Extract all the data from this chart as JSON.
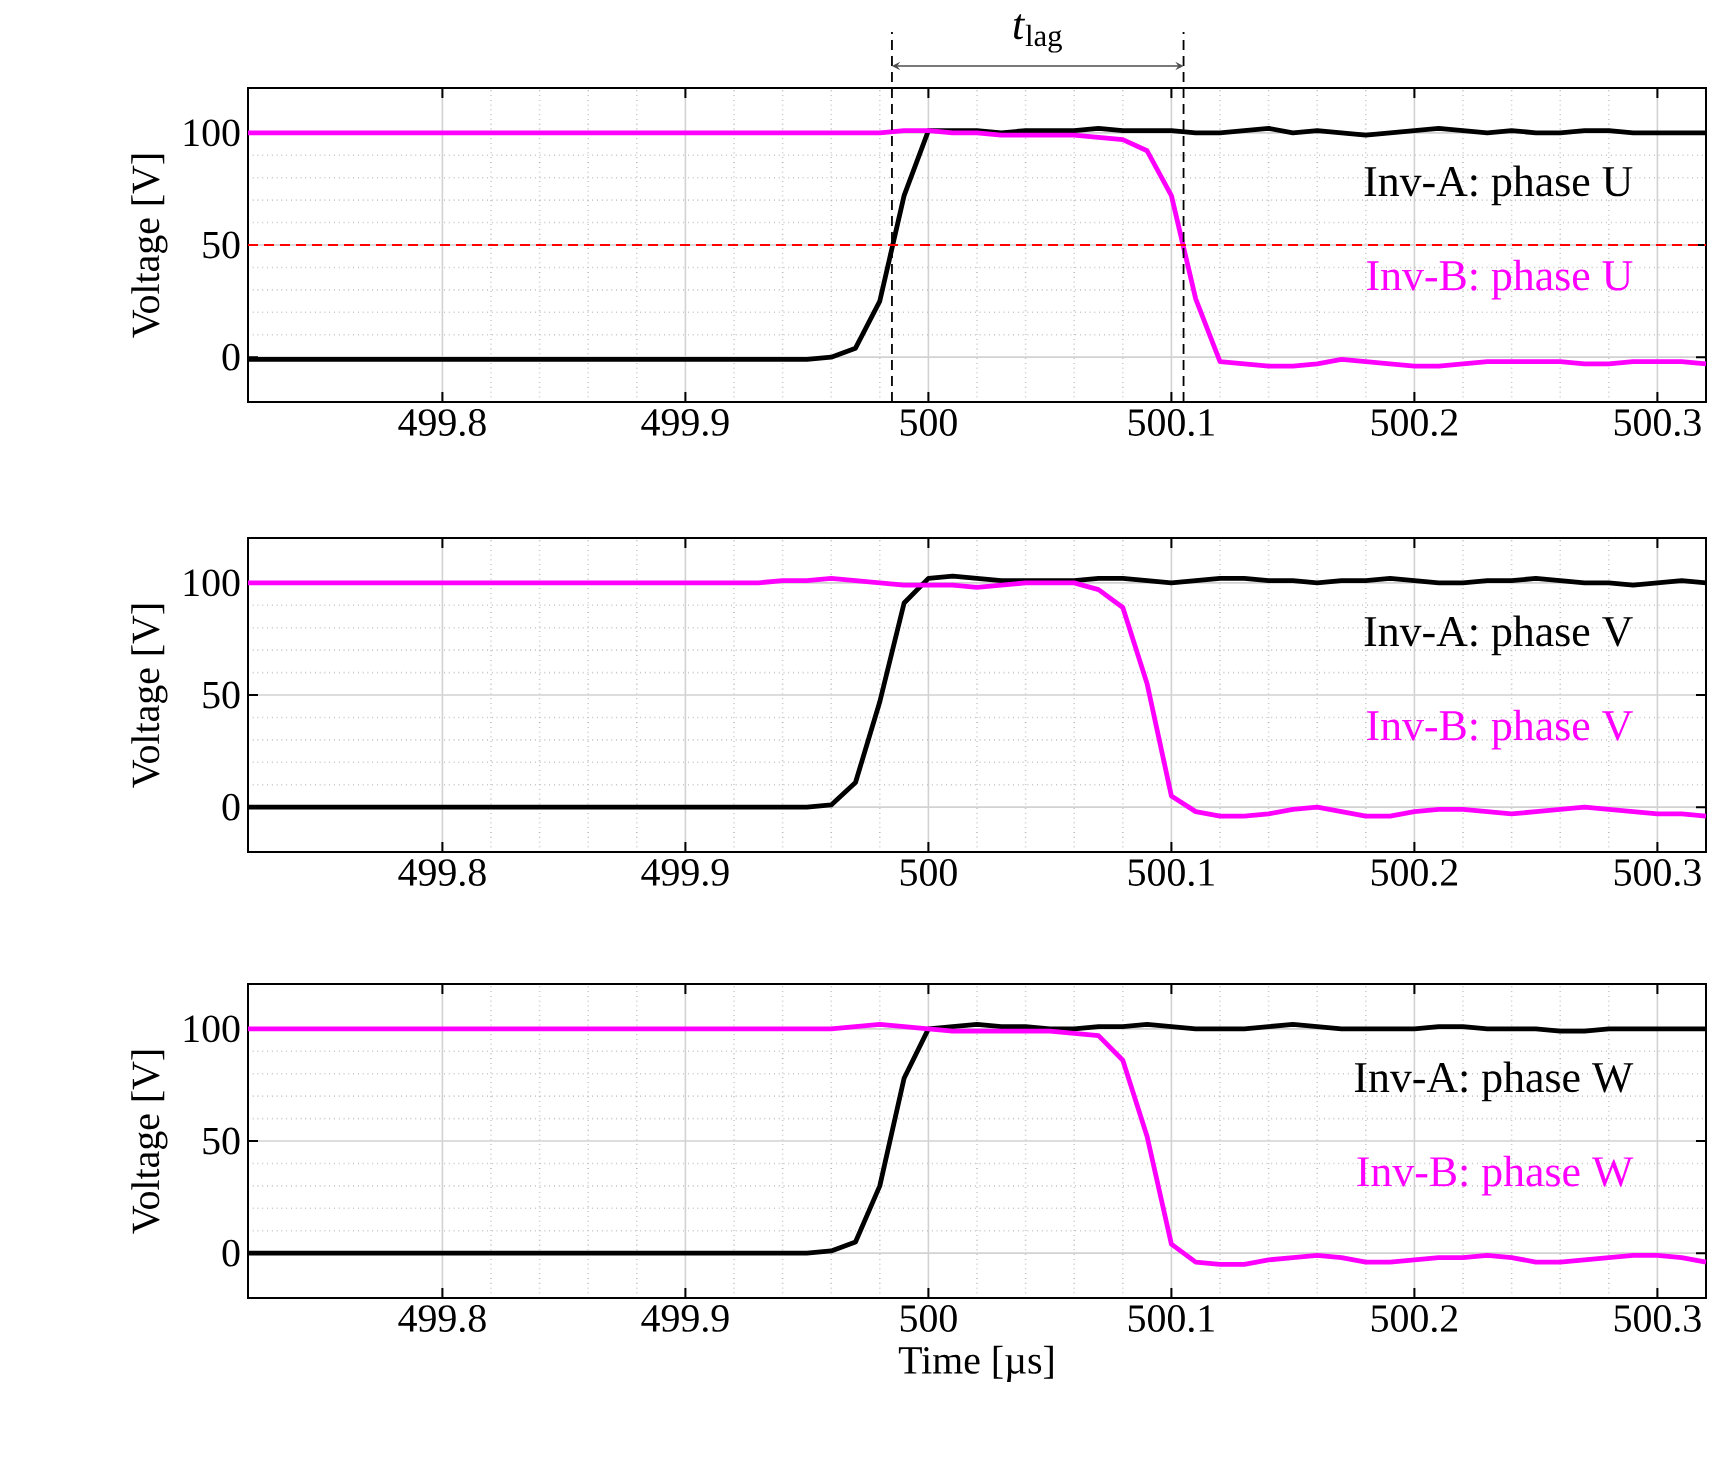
{
  "chart_data": [
    {
      "type": "line",
      "ylabel": "Voltage [V]",
      "x": [
        499.72,
        499.73,
        499.74,
        499.75,
        499.76,
        499.77,
        499.78,
        499.79,
        499.8,
        499.81,
        499.82,
        499.83,
        499.84,
        499.85,
        499.86,
        499.87,
        499.88,
        499.89,
        499.9,
        499.91,
        499.92,
        499.93,
        499.94,
        499.95,
        499.96,
        499.97,
        499.98,
        499.99,
        500.0,
        500.01,
        500.02,
        500.03,
        500.04,
        500.05,
        500.06,
        500.07,
        500.08,
        500.09,
        500.1,
        500.11,
        500.12,
        500.13,
        500.14,
        500.15,
        500.16,
        500.17,
        500.18,
        500.19,
        500.2,
        500.21,
        500.22,
        500.23,
        500.24,
        500.25,
        500.26,
        500.27,
        500.28,
        500.29,
        500.3,
        500.31,
        500.32
      ],
      "series": [
        {
          "name": "Inv-A: phase U",
          "color": "#000000",
          "values": [
            -1,
            -1,
            -1,
            -1,
            -1,
            -1,
            -1,
            -1,
            -1,
            -1,
            -1,
            -1,
            -1,
            -1,
            -1,
            -1,
            -1,
            -1,
            -1,
            -1,
            -1,
            -1,
            -1,
            -1,
            0,
            4,
            25,
            72,
            101,
            101,
            101,
            100,
            101,
            101,
            101,
            102,
            101,
            101,
            101,
            100,
            100,
            101,
            102,
            100,
            101,
            100,
            99,
            100,
            101,
            102,
            101,
            100,
            101,
            100,
            100,
            101,
            101,
            100,
            100,
            100,
            100
          ]
        },
        {
          "name": "Inv-B: phase U",
          "color": "#ff00ff",
          "values": [
            100,
            100,
            100,
            100,
            100,
            100,
            100,
            100,
            100,
            100,
            100,
            100,
            100,
            100,
            100,
            100,
            100,
            100,
            100,
            100,
            100,
            100,
            100,
            100,
            100,
            100,
            100,
            101,
            101,
            100,
            100,
            99,
            99,
            99,
            99,
            98,
            97,
            92,
            72,
            26,
            -2,
            -3,
            -4,
            -4,
            -3,
            -1,
            -2,
            -3,
            -4,
            -4,
            -3,
            -2,
            -2,
            -2,
            -2,
            -3,
            -3,
            -2,
            -2,
            -2,
            -3
          ]
        }
      ],
      "xlim": [
        499.72,
        500.32
      ],
      "ylim": [
        -20,
        120
      ],
      "xticks": [
        499.8,
        499.9,
        500,
        500.1,
        500.2,
        500.3
      ],
      "yticks": [
        0,
        50,
        100
      ],
      "grid": true,
      "line_style": "solid",
      "marker": "none",
      "ref_lines": [
        {
          "axis": "y",
          "value": 50,
          "color": "#ff0000",
          "line_style": "dashed"
        },
        {
          "axis": "x",
          "value": 499.985,
          "color": "#000000",
          "line_style": "dashed"
        },
        {
          "axis": "x",
          "value": 500.105,
          "color": "#000000",
          "line_style": "dashed"
        }
      ],
      "annotations": [
        "*t*$_{lag}$"
      ]
    },
    {
      "type": "line",
      "ylabel": "Voltage [V]",
      "x": [
        499.72,
        499.73,
        499.74,
        499.75,
        499.76,
        499.77,
        499.78,
        499.79,
        499.8,
        499.81,
        499.82,
        499.83,
        499.84,
        499.85,
        499.86,
        499.87,
        499.88,
        499.89,
        499.9,
        499.91,
        499.92,
        499.93,
        499.94,
        499.95,
        499.96,
        499.97,
        499.98,
        499.99,
        500.0,
        500.01,
        500.02,
        500.03,
        500.04,
        500.05,
        500.06,
        500.07,
        500.08,
        500.09,
        500.1,
        500.11,
        500.12,
        500.13,
        500.14,
        500.15,
        500.16,
        500.17,
        500.18,
        500.19,
        500.2,
        500.21,
        500.22,
        500.23,
        500.24,
        500.25,
        500.26,
        500.27,
        500.28,
        500.29,
        500.3,
        500.31,
        500.32
      ],
      "series": [
        {
          "name": "Inv-A: phase V",
          "color": "#000000",
          "values": [
            0,
            0,
            0,
            0,
            0,
            0,
            0,
            0,
            0,
            0,
            0,
            0,
            0,
            0,
            0,
            0,
            0,
            0,
            0,
            0,
            0,
            0,
            0,
            0,
            1,
            11,
            47,
            91,
            102,
            103,
            102,
            101,
            101,
            101,
            101,
            102,
            102,
            101,
            100,
            101,
            102,
            102,
            101,
            101,
            100,
            101,
            101,
            102,
            101,
            100,
            100,
            101,
            101,
            102,
            101,
            100,
            100,
            99,
            100,
            101,
            100
          ]
        },
        {
          "name": "Inv-B: phase V",
          "color": "#ff00ff",
          "values": [
            100,
            100,
            100,
            100,
            100,
            100,
            100,
            100,
            100,
            100,
            100,
            100,
            100,
            100,
            100,
            100,
            100,
            100,
            100,
            100,
            100,
            100,
            101,
            101,
            102,
            101,
            100,
            99,
            99,
            99,
            98,
            99,
            100,
            100,
            100,
            97,
            89,
            55,
            5,
            -2,
            -4,
            -4,
            -3,
            -1,
            0,
            -2,
            -4,
            -4,
            -2,
            -1,
            -1,
            -2,
            -3,
            -2,
            -1,
            0,
            -1,
            -2,
            -3,
            -3,
            -4
          ]
        }
      ],
      "xlim": [
        499.72,
        500.32
      ],
      "ylim": [
        -20,
        120
      ],
      "xticks": [
        499.8,
        499.9,
        500,
        500.1,
        500.2,
        500.3
      ],
      "yticks": [
        0,
        50,
        100
      ],
      "grid": true,
      "line_style": "solid",
      "marker": "none"
    },
    {
      "type": "line",
      "ylabel": "Voltage [V]",
      "xlabel": "Time [µs]",
      "x": [
        499.72,
        499.73,
        499.74,
        499.75,
        499.76,
        499.77,
        499.78,
        499.79,
        499.8,
        499.81,
        499.82,
        499.83,
        499.84,
        499.85,
        499.86,
        499.87,
        499.88,
        499.89,
        499.9,
        499.91,
        499.92,
        499.93,
        499.94,
        499.95,
        499.96,
        499.97,
        499.98,
        499.99,
        500.0,
        500.01,
        500.02,
        500.03,
        500.04,
        500.05,
        500.06,
        500.07,
        500.08,
        500.09,
        500.1,
        500.11,
        500.12,
        500.13,
        500.14,
        500.15,
        500.16,
        500.17,
        500.18,
        500.19,
        500.2,
        500.21,
        500.22,
        500.23,
        500.24,
        500.25,
        500.26,
        500.27,
        500.28,
        500.29,
        500.3,
        500.31,
        500.32
      ],
      "series": [
        {
          "name": "Inv-A: phase W",
          "color": "#000000",
          "values": [
            0,
            0,
            0,
            0,
            0,
            0,
            0,
            0,
            0,
            0,
            0,
            0,
            0,
            0,
            0,
            0,
            0,
            0,
            0,
            0,
            0,
            0,
            0,
            0,
            1,
            5,
            30,
            78,
            100,
            101,
            102,
            101,
            101,
            100,
            100,
            101,
            101,
            102,
            101,
            100,
            100,
            100,
            101,
            102,
            101,
            100,
            100,
            100,
            100,
            101,
            101,
            100,
            100,
            100,
            99,
            99,
            100,
            100,
            100,
            100,
            100
          ]
        },
        {
          "name": "Inv-B: phase W",
          "color": "#ff00ff",
          "values": [
            100,
            100,
            100,
            100,
            100,
            100,
            100,
            100,
            100,
            100,
            100,
            100,
            100,
            100,
            100,
            100,
            100,
            100,
            100,
            100,
            100,
            100,
            100,
            100,
            100,
            101,
            102,
            101,
            100,
            99,
            99,
            99,
            99,
            99,
            98,
            97,
            86,
            52,
            4,
            -4,
            -5,
            -5,
            -3,
            -2,
            -1,
            -2,
            -4,
            -4,
            -3,
            -2,
            -2,
            -1,
            -2,
            -4,
            -4,
            -3,
            -2,
            -1,
            -1,
            -2,
            -4
          ]
        }
      ],
      "xlim": [
        499.72,
        500.32
      ],
      "ylim": [
        -20,
        120
      ],
      "xticks": [
        499.8,
        499.9,
        500,
        500.1,
        500.2,
        500.3
      ],
      "yticks": [
        0,
        50,
        100
      ],
      "grid": true,
      "line_style": "solid",
      "marker": "none"
    }
  ]
}
